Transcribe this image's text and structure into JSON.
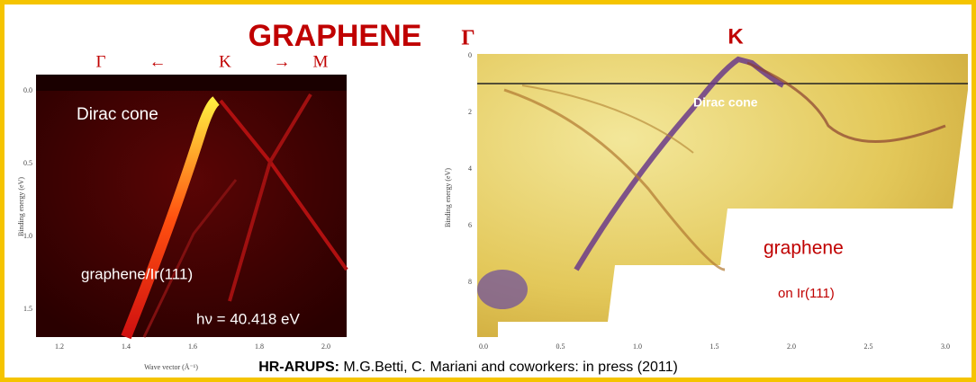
{
  "title": "GRAPHENE",
  "left_panel": {
    "direction_labels": [
      "Γ",
      "←",
      "K",
      "→",
      "M"
    ],
    "annotations": [
      "Dirac  cone",
      "graphene/Ir(111)",
      "hν = 40.418 eV"
    ],
    "y_axis_label": "Binding energy (eV)",
    "y_ticks": [
      "0.0",
      "0.5",
      "1.0",
      "1.5"
    ],
    "x_axis_label": "Wave vector (Å⁻¹)",
    "x_ticks": [
      "1.2",
      "1.4",
      "1.6",
      "1.8",
      "2.0"
    ]
  },
  "right_panel": {
    "direction_labels": [
      "Γ",
      "K"
    ],
    "annotations": [
      "Dirac cone",
      "graphene",
      "on Ir(111)"
    ],
    "y_axis_label": "Binding energy (eV)",
    "y_ticks": [
      "0",
      "2",
      "4",
      "6",
      "8"
    ],
    "x_ticks": [
      "0.0",
      "0.5",
      "1.0",
      "1.5",
      "2.0",
      "2.5",
      "3.0"
    ]
  },
  "caption": {
    "bold": "HR-ARUPS:",
    "text": "M.G.Betti,  C. Mariani and coworkers: in press (2011)"
  }
}
